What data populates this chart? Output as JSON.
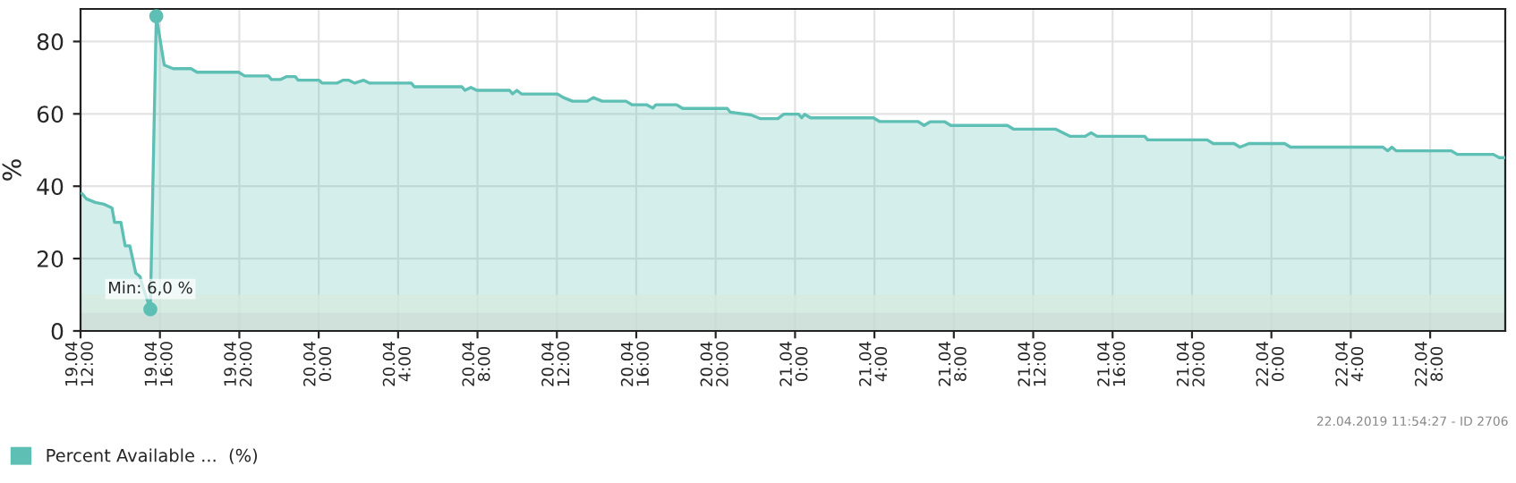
{
  "chart_data": {
    "type": "area",
    "ylabel": "%",
    "legend": "bottom",
    "grid": true,
    "marker": "none",
    "xlim": [
      "2019-04-19T12:00",
      "2019-04-22T11:47"
    ],
    "ylim": [
      0,
      89
    ],
    "yticks": [
      0,
      20,
      40,
      60,
      80
    ],
    "xticks": [
      {
        "value": "2019-04-19T12:00",
        "label": "19.04\n12:00"
      },
      {
        "value": "2019-04-19T16:00",
        "label": "19.04\n16:00"
      },
      {
        "value": "2019-04-19T20:00",
        "label": "19.04\n20:00"
      },
      {
        "value": "2019-04-20T00:00",
        "label": "20.04\n0:00"
      },
      {
        "value": "2019-04-20T04:00",
        "label": "20.04\n4:00"
      },
      {
        "value": "2019-04-20T08:00",
        "label": "20.04\n8:00"
      },
      {
        "value": "2019-04-20T12:00",
        "label": "20.04\n12:00"
      },
      {
        "value": "2019-04-20T16:00",
        "label": "20.04\n16:00"
      },
      {
        "value": "2019-04-20T20:00",
        "label": "20.04\n20:00"
      },
      {
        "value": "2019-04-21T00:00",
        "label": "21.04\n0:00"
      },
      {
        "value": "2019-04-21T04:00",
        "label": "21.04\n4:00"
      },
      {
        "value": "2019-04-21T08:00",
        "label": "21.04\n8:00"
      },
      {
        "value": "2019-04-21T12:00",
        "label": "21.04\n12:00"
      },
      {
        "value": "2019-04-21T16:00",
        "label": "21.04\n16:00"
      },
      {
        "value": "2019-04-21T20:00",
        "label": "21.04\n20:00"
      },
      {
        "value": "2019-04-22T00:00",
        "label": "22.04\n0:00"
      },
      {
        "value": "2019-04-22T04:00",
        "label": "22.04\n4:00"
      },
      {
        "value": "2019-04-22T08:00",
        "label": "22.04\n8:00"
      }
    ],
    "bands": [
      {
        "axis": "y",
        "from": 0,
        "to": 5,
        "color": "#cfdcd5"
      },
      {
        "axis": "y",
        "from": 5,
        "to": 10,
        "color": "#d7eadf"
      }
    ],
    "annotations": [
      {
        "text": "Min: 6,0 %",
        "x": "2019-04-19T15:31",
        "y": 6
      },
      "22.04.2019 11:54:27 - ID 2706"
    ],
    "series": [
      {
        "name": "Percent Available ...  (%)",
        "color": "#5ebfb4",
        "x": [
          "2019-04-19T12:04",
          "2019-04-19T12:18",
          "2019-04-19T12:45",
          "2019-04-19T13:12",
          "2019-04-19T13:35",
          "2019-04-19T13:43",
          "2019-04-19T14:02",
          "2019-04-19T14:15",
          "2019-04-19T14:29",
          "2019-04-19T14:47",
          "2019-04-19T15:00",
          "2019-04-19T15:09",
          "2019-04-19T15:31",
          "2019-04-19T15:49",
          "2019-04-19T16:13",
          "2019-04-19T16:40",
          "2019-04-19T17:34",
          "2019-04-19T17:52",
          "2019-04-19T19:58",
          "2019-04-19T20:16",
          "2019-04-19T21:28",
          "2019-04-19T21:37",
          "2019-04-19T22:04",
          "2019-04-19T22:22",
          "2019-04-19T22:49",
          "2019-04-19T22:58",
          "2019-04-20T00:01",
          "2019-04-20T00:10",
          "2019-04-20T00:55",
          "2019-04-20T01:13",
          "2019-04-20T01:31",
          "2019-04-20T01:49",
          "2019-04-20T02:16",
          "2019-04-20T02:34",
          "2019-04-20T04:40",
          "2019-04-20T04:49",
          "2019-04-20T07:13",
          "2019-04-20T07:22",
          "2019-04-20T07:40",
          "2019-04-20T07:58",
          "2019-04-20T09:37",
          "2019-04-20T09:46",
          "2019-04-20T09:59",
          "2019-04-20T10:13",
          "2019-04-20T12:02",
          "2019-04-20T12:20",
          "2019-04-20T12:47",
          "2019-04-20T13:32",
          "2019-04-20T13:50",
          "2019-04-20T14:17",
          "2019-04-20T15:29",
          "2019-04-20T15:47",
          "2019-04-20T16:32",
          "2019-04-20T16:50",
          "2019-04-20T16:59",
          "2019-04-20T18:02",
          "2019-04-20T18:20",
          "2019-04-20T20:35",
          "2019-04-20T20:44",
          "2019-04-20T21:47",
          "2019-04-20T22:14",
          "2019-04-20T23:08",
          "2019-04-20T23:26",
          "2019-04-21T00:11",
          "2019-04-21T00:20",
          "2019-04-21T00:29",
          "2019-04-21T00:47",
          "2019-04-21T03:57",
          "2019-04-21T04:15",
          "2019-04-21T06:12",
          "2019-04-21T06:30",
          "2019-04-21T06:48",
          "2019-04-21T07:33",
          "2019-04-21T07:51",
          "2019-04-21T10:42",
          "2019-04-21T11:00",
          "2019-04-21T13:07",
          "2019-04-21T13:52",
          "2019-04-21T14:37",
          "2019-04-21T14:55",
          "2019-04-21T15:13",
          "2019-04-21T17:37",
          "2019-04-21T17:46",
          "2019-04-21T20:46",
          "2019-04-21T21:04",
          "2019-04-21T22:07",
          "2019-04-21T22:25",
          "2019-04-21T22:52",
          "2019-04-22T00:40",
          "2019-04-22T00:58",
          "2019-04-22T05:37",
          "2019-04-22T05:52",
          "2019-04-22T06:04",
          "2019-04-22T06:17",
          "2019-04-22T09:04",
          "2019-04-22T09:22",
          "2019-04-22T11:11",
          "2019-04-22T11:29",
          "2019-04-22T11:47"
        ],
        "values": [
          38,
          36.5,
          35.5,
          35,
          34,
          30,
          30,
          23.5,
          23.5,
          16,
          15,
          12,
          6,
          87,
          73.5,
          72.5,
          72.5,
          71.5,
          71.5,
          70.5,
          70.5,
          69.5,
          69.5,
          70.3,
          70.3,
          69.3,
          69.3,
          68.5,
          68.5,
          69.3,
          69.3,
          68.5,
          69.3,
          68.5,
          68.5,
          67.5,
          67.5,
          66.5,
          67.3,
          66.5,
          66.5,
          65.5,
          66.5,
          65.5,
          65.5,
          64.5,
          63.5,
          63.5,
          64.5,
          63.5,
          63.5,
          62.5,
          62.5,
          61.6,
          62.5,
          62.5,
          61.5,
          61.5,
          60.5,
          59.7,
          58.7,
          58.7,
          59.9,
          59.9,
          58.9,
          59.9,
          58.9,
          58.9,
          57.9,
          57.9,
          56.8,
          57.8,
          57.8,
          56.8,
          56.8,
          55.8,
          55.8,
          53.8,
          53.8,
          54.8,
          53.8,
          53.8,
          52.8,
          52.8,
          51.8,
          51.8,
          50.8,
          51.8,
          51.8,
          50.8,
          50.8,
          49.8,
          50.8,
          49.8,
          49.8,
          48.8,
          48.8,
          47.9,
          47.9
        ]
      },
      {
        "color": "#5ebfb4",
        "type": "scatter",
        "marker": "circle",
        "x": [
          "2019-04-19T15:31",
          "2019-04-19T15:49"
        ],
        "values": [
          6,
          87
        ]
      }
    ]
  }
}
